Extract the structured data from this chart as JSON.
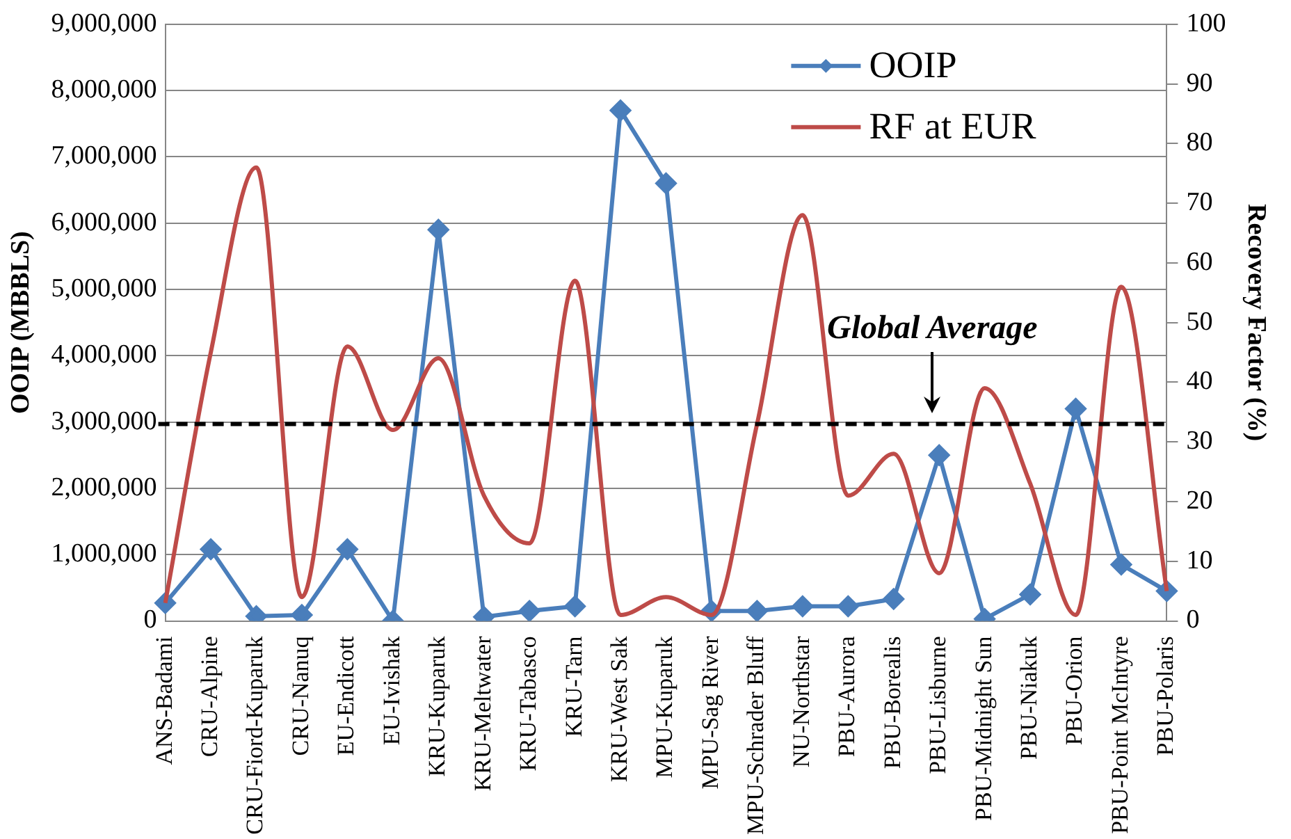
{
  "chart_data": {
    "type": "line",
    "ylabel": "OOIP (MBBLS)",
    "y2label": "Recovery Factor (%)",
    "categories": [
      "ANS-Badami",
      "CRU-Alpine",
      "CRU-Fiord-Kuparuk",
      "CRU-Nanuq",
      "EU-Endicott",
      "EU-Ivishak",
      "KRU-Kuparuk",
      "KRU-Meltwater",
      "KRU-Tabasco",
      "KRU-Tarn",
      "KRU-West Sak",
      "MPU-Kuparuk",
      "MPU-Sag River",
      "MPU-Schrader Bluff",
      "NU-Northstar",
      "PBU-Aurora",
      "PBU-Borealis",
      "PBU-Lisburne",
      "PBU-Midnight Sun",
      "PBU-Niakuk",
      "PBU-Orion",
      "PBU-Point McIntyre",
      "PBU-Polaris"
    ],
    "series": [
      {
        "name": "OOIP",
        "color": "#4a7ebb",
        "marker": "diamond",
        "values": [
          270000,
          1080000,
          70000,
          90000,
          1080000,
          0,
          5900000,
          60000,
          150000,
          220000,
          7700000,
          6600000,
          150000,
          150000,
          220000,
          220000,
          330000,
          2500000,
          30000,
          400000,
          3200000,
          850000,
          450000
        ]
      },
      {
        "name": "RF at EUR",
        "color": "#be4b48",
        "marker": "none",
        "axis": "y2",
        "values": [
          3,
          45,
          76,
          4,
          46,
          32,
          44,
          21,
          13,
          57,
          1,
          4,
          1,
          33,
          68,
          21,
          28,
          8,
          39,
          23,
          1,
          56,
          5
        ]
      }
    ],
    "ylim": [
      0,
      9000000
    ],
    "yticks": [
      {
        "value": 0,
        "label": "0"
      },
      {
        "value": 1000000,
        "label": "1,000,000"
      },
      {
        "value": 2000000,
        "label": "2,000,000"
      },
      {
        "value": 3000000,
        "label": "3,000,000"
      },
      {
        "value": 4000000,
        "label": "4,000,000"
      },
      {
        "value": 5000000,
        "label": "5,000,000"
      },
      {
        "value": 6000000,
        "label": "6,000,000"
      },
      {
        "value": 7000000,
        "label": "7,000,000"
      },
      {
        "value": 8000000,
        "label": "8,000,000"
      },
      {
        "value": 9000000,
        "label": "9,000,000"
      }
    ],
    "y2lim": [
      0,
      100
    ],
    "y2ticks": [
      0,
      10,
      20,
      30,
      40,
      50,
      60,
      70,
      80,
      90,
      100
    ],
    "ref_lines": [
      {
        "axis": "y2",
        "value": 33,
        "label": "Global Average",
        "color": "#000000",
        "line_style": "dashed"
      }
    ],
    "grid": "y",
    "legend": "top right"
  }
}
